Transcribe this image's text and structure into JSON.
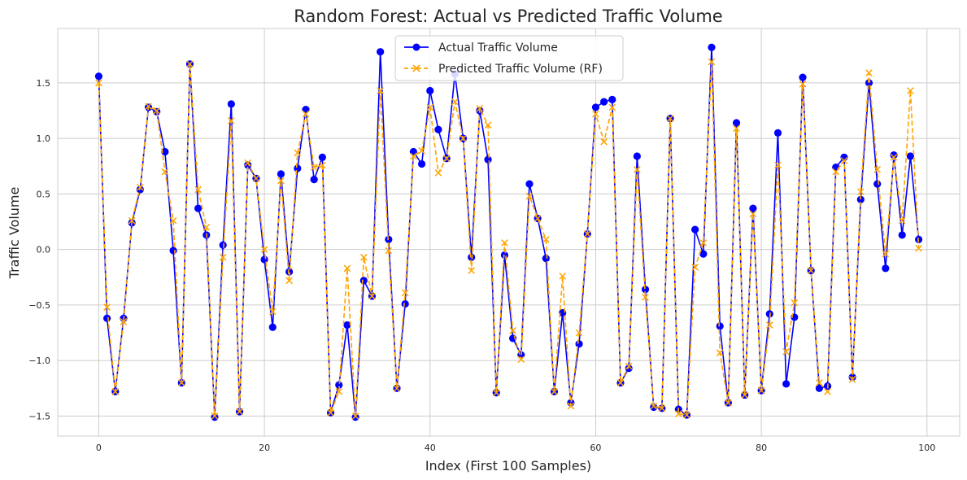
{
  "chart_data": {
    "type": "line",
    "title": "Random Forest: Actual vs Predicted Traffic Volume",
    "xlabel": "Index (First 100 Samples)",
    "ylabel": "Traffic Volume",
    "xlim": [
      -4.95,
      103.95
    ],
    "ylim": [
      -1.68,
      1.99
    ],
    "x_ticks": [
      0,
      20,
      40,
      60,
      80,
      100
    ],
    "x_tick_labels": [
      "0",
      "20",
      "40",
      "60",
      "80",
      "100"
    ],
    "y_ticks": [
      -1.5,
      -1.0,
      -0.5,
      0.0,
      0.5,
      1.0,
      1.5
    ],
    "y_tick_labels": [
      "−1.5",
      "−1.0",
      "−0.5",
      "0.0",
      "0.5",
      "1.0",
      "1.5"
    ],
    "grid": true,
    "legend_position": "top-center",
    "x": [
      0,
      1,
      2,
      3,
      4,
      5,
      6,
      7,
      8,
      9,
      10,
      11,
      12,
      13,
      14,
      15,
      16,
      17,
      18,
      19,
      20,
      21,
      22,
      23,
      24,
      25,
      26,
      27,
      28,
      29,
      30,
      31,
      32,
      33,
      34,
      35,
      36,
      37,
      38,
      39,
      40,
      41,
      42,
      43,
      44,
      45,
      46,
      47,
      48,
      49,
      50,
      51,
      52,
      53,
      54,
      55,
      56,
      57,
      58,
      59,
      60,
      61,
      62,
      63,
      64,
      65,
      66,
      67,
      68,
      69,
      70,
      71,
      72,
      73,
      74,
      75,
      76,
      77,
      78,
      79,
      80,
      81,
      82,
      83,
      84,
      85,
      86,
      87,
      88,
      89,
      90,
      91,
      92,
      93,
      94,
      95,
      96,
      97,
      98,
      99
    ],
    "series": [
      {
        "name": "Actual Traffic Volume",
        "color": "#0000ff",
        "line_style": "solid",
        "marker": "circle",
        "values": [
          1.56,
          -0.62,
          -1.28,
          -0.62,
          0.24,
          0.54,
          1.28,
          1.24,
          0.88,
          -0.01,
          -1.2,
          1.67,
          0.37,
          0.13,
          -1.51,
          0.04,
          1.31,
          -1.46,
          0.76,
          0.64,
          -0.09,
          -0.7,
          0.68,
          -0.2,
          0.73,
          1.26,
          0.63,
          0.83,
          -1.47,
          -1.22,
          -0.68,
          -1.51,
          -0.28,
          -0.42,
          1.78,
          0.09,
          -1.25,
          -0.49,
          0.88,
          0.77,
          1.43,
          1.08,
          0.82,
          1.58,
          1.0,
          -0.07,
          1.25,
          0.81,
          -1.29,
          -0.05,
          -0.8,
          -0.95,
          0.59,
          0.28,
          -0.08,
          -1.28,
          -0.57,
          -1.38,
          -0.85,
          0.14,
          1.28,
          1.33,
          1.35,
          -1.2,
          -1.07,
          0.84,
          -0.36,
          -1.42,
          -1.43,
          1.18,
          -1.44,
          -1.49,
          0.18,
          -0.04,
          1.82,
          -0.69,
          -1.38,
          1.14,
          -1.31,
          0.37,
          -1.27,
          -0.58,
          1.05,
          -1.21,
          -0.61,
          1.55,
          -0.19,
          -1.25,
          -1.23,
          0.74,
          0.83,
          -1.15,
          0.45,
          1.5,
          0.59,
          -0.17,
          0.85,
          0.13,
          0.84,
          0.09
        ]
      },
      {
        "name": "Predicted Traffic Volume (RF)",
        "color": "#ffa500",
        "line_style": "dashed",
        "marker": "x",
        "values": [
          1.5,
          -0.52,
          -1.28,
          -0.65,
          0.26,
          0.56,
          1.29,
          1.25,
          0.7,
          0.26,
          -1.2,
          1.67,
          0.54,
          0.2,
          -1.5,
          -0.07,
          1.16,
          -1.46,
          0.78,
          0.64,
          0.0,
          -0.56,
          0.62,
          -0.28,
          0.87,
          1.22,
          0.74,
          0.76,
          -1.47,
          -1.28,
          -0.17,
          -1.5,
          -0.07,
          -0.42,
          1.43,
          -0.01,
          -1.25,
          -0.39,
          0.84,
          0.89,
          1.28,
          0.69,
          0.82,
          1.33,
          1.0,
          -0.19,
          1.27,
          1.12,
          -1.29,
          0.06,
          -0.73,
          -0.99,
          0.48,
          0.28,
          0.09,
          -1.28,
          -0.24,
          -1.41,
          -0.75,
          0.14,
          1.22,
          0.97,
          1.28,
          -1.2,
          -1.05,
          0.72,
          -0.43,
          -1.41,
          -1.43,
          1.18,
          -1.48,
          -1.49,
          -0.16,
          0.06,
          1.69,
          -0.93,
          -1.38,
          1.09,
          -1.31,
          0.32,
          -1.27,
          -0.68,
          0.76,
          -0.92,
          -0.48,
          1.49,
          -0.19,
          -1.2,
          -1.28,
          0.7,
          0.8,
          -1.17,
          0.52,
          1.59,
          0.72,
          -0.04,
          0.83,
          0.26,
          1.43,
          0.01
        ]
      }
    ]
  }
}
